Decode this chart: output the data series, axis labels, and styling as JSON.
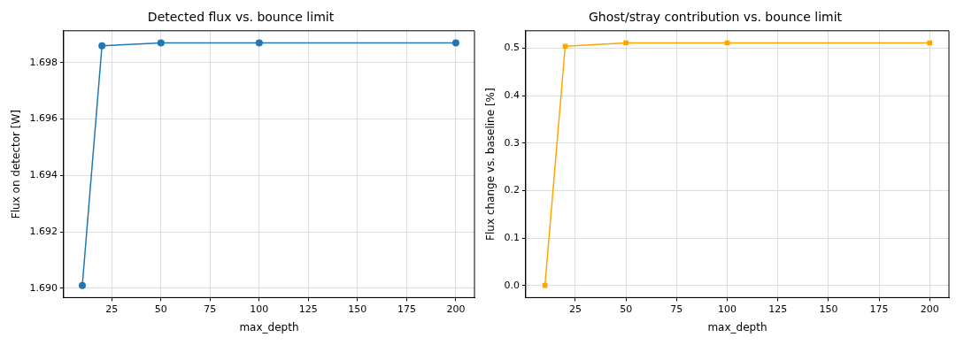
{
  "chart_data": [
    {
      "type": "line",
      "title": "Detected flux vs. bounce limit",
      "xlabel": "max_depth",
      "ylabel": "Flux on detector [W]",
      "x": [
        10,
        20,
        50,
        100,
        200
      ],
      "series": [
        {
          "color": "#1f77b4",
          "values": [
            1.6901,
            1.6986,
            1.6987,
            1.6987,
            1.6987
          ]
        }
      ],
      "xlim": [
        0.5,
        209.5
      ],
      "xticks": [
        25,
        50,
        75,
        100,
        125,
        150,
        175,
        200
      ],
      "ylim": [
        1.68967,
        1.69913
      ],
      "yticks": [
        {
          "value": 1.69,
          "label": "1.690"
        },
        {
          "value": 1.692,
          "label": "1.692"
        },
        {
          "value": 1.694,
          "label": "1.694"
        },
        {
          "value": 1.696,
          "label": "1.696"
        },
        {
          "value": 1.698,
          "label": "1.698"
        }
      ],
      "grid": true,
      "marker": "circle",
      "line_style": "solid"
    },
    {
      "type": "line",
      "title": "Ghost/stray contribution vs. bounce limit",
      "xlabel": "max_depth",
      "ylabel": "Flux change vs. baseline [%]",
      "x": [
        10,
        20,
        50,
        100,
        200
      ],
      "series": [
        {
          "color": "#ffa500",
          "values": [
            0,
            0.504,
            0.511,
            0.511,
            0.511
          ]
        }
      ],
      "xlim": [
        0.5,
        209.5
      ],
      "xticks": [
        25,
        50,
        75,
        100,
        125,
        150,
        175,
        200
      ],
      "ylim": [
        -0.0256,
        0.5366
      ],
      "yticks": [
        {
          "value": 0,
          "label": "0.0"
        },
        0.1,
        0.2,
        0.3,
        0.4,
        0.5
      ],
      "grid": true,
      "marker": "square",
      "line_style": "solid"
    }
  ]
}
